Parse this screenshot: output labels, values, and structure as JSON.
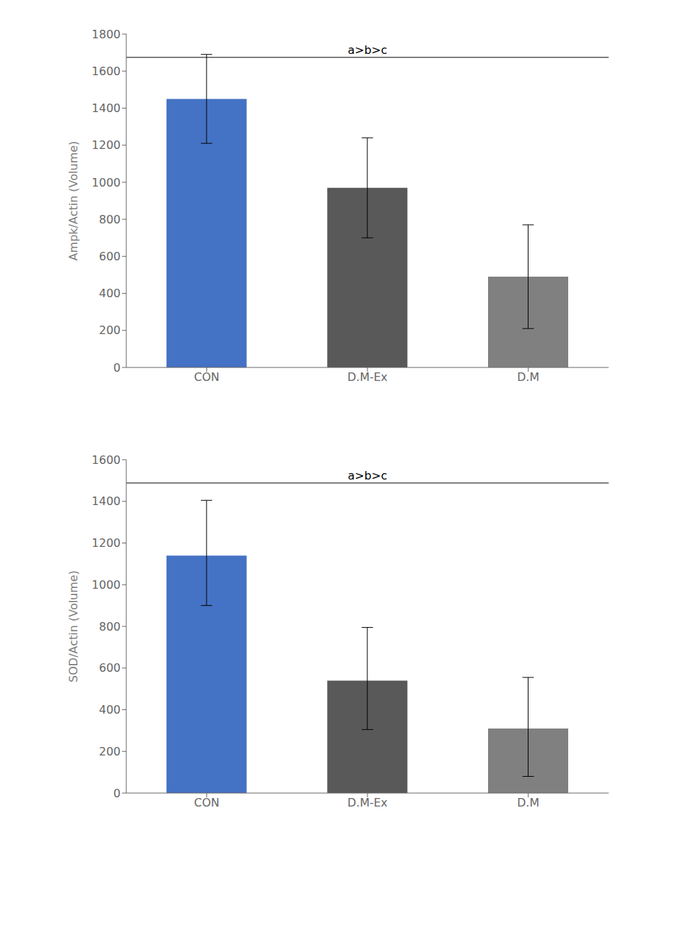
{
  "chart_data": [
    {
      "type": "bar",
      "categories": [
        "CON",
        "D.M-Ex",
        "D.M"
      ],
      "values": [
        1450,
        970,
        490
      ],
      "errors": [
        240,
        270,
        280
      ],
      "colors": [
        "#4472c4",
        "#595959",
        "#808080"
      ],
      "ylabel": "Ampk/Actin (Volume)",
      "ylim": [
        0,
        1800
      ],
      "yticks": [
        0,
        200,
        400,
        600,
        800,
        1000,
        1200,
        1400,
        1600,
        1800
      ],
      "annotation": "a>b>c",
      "grid": false
    },
    {
      "type": "bar",
      "categories": [
        "CON",
        "D.M-Ex",
        "D.M"
      ],
      "values": [
        1140,
        540,
        310
      ],
      "errors_lower": [
        240,
        235,
        230
      ],
      "errors_upper": [
        265,
        255,
        245
      ],
      "colors": [
        "#4472c4",
        "#595959",
        "#808080"
      ],
      "ylabel": "SOD/Actin (Volume)",
      "ylim": [
        0,
        1600
      ],
      "yticks": [
        0,
        200,
        400,
        600,
        800,
        1000,
        1200,
        1400,
        1600
      ],
      "annotation": "a>b>c",
      "grid": false
    }
  ]
}
